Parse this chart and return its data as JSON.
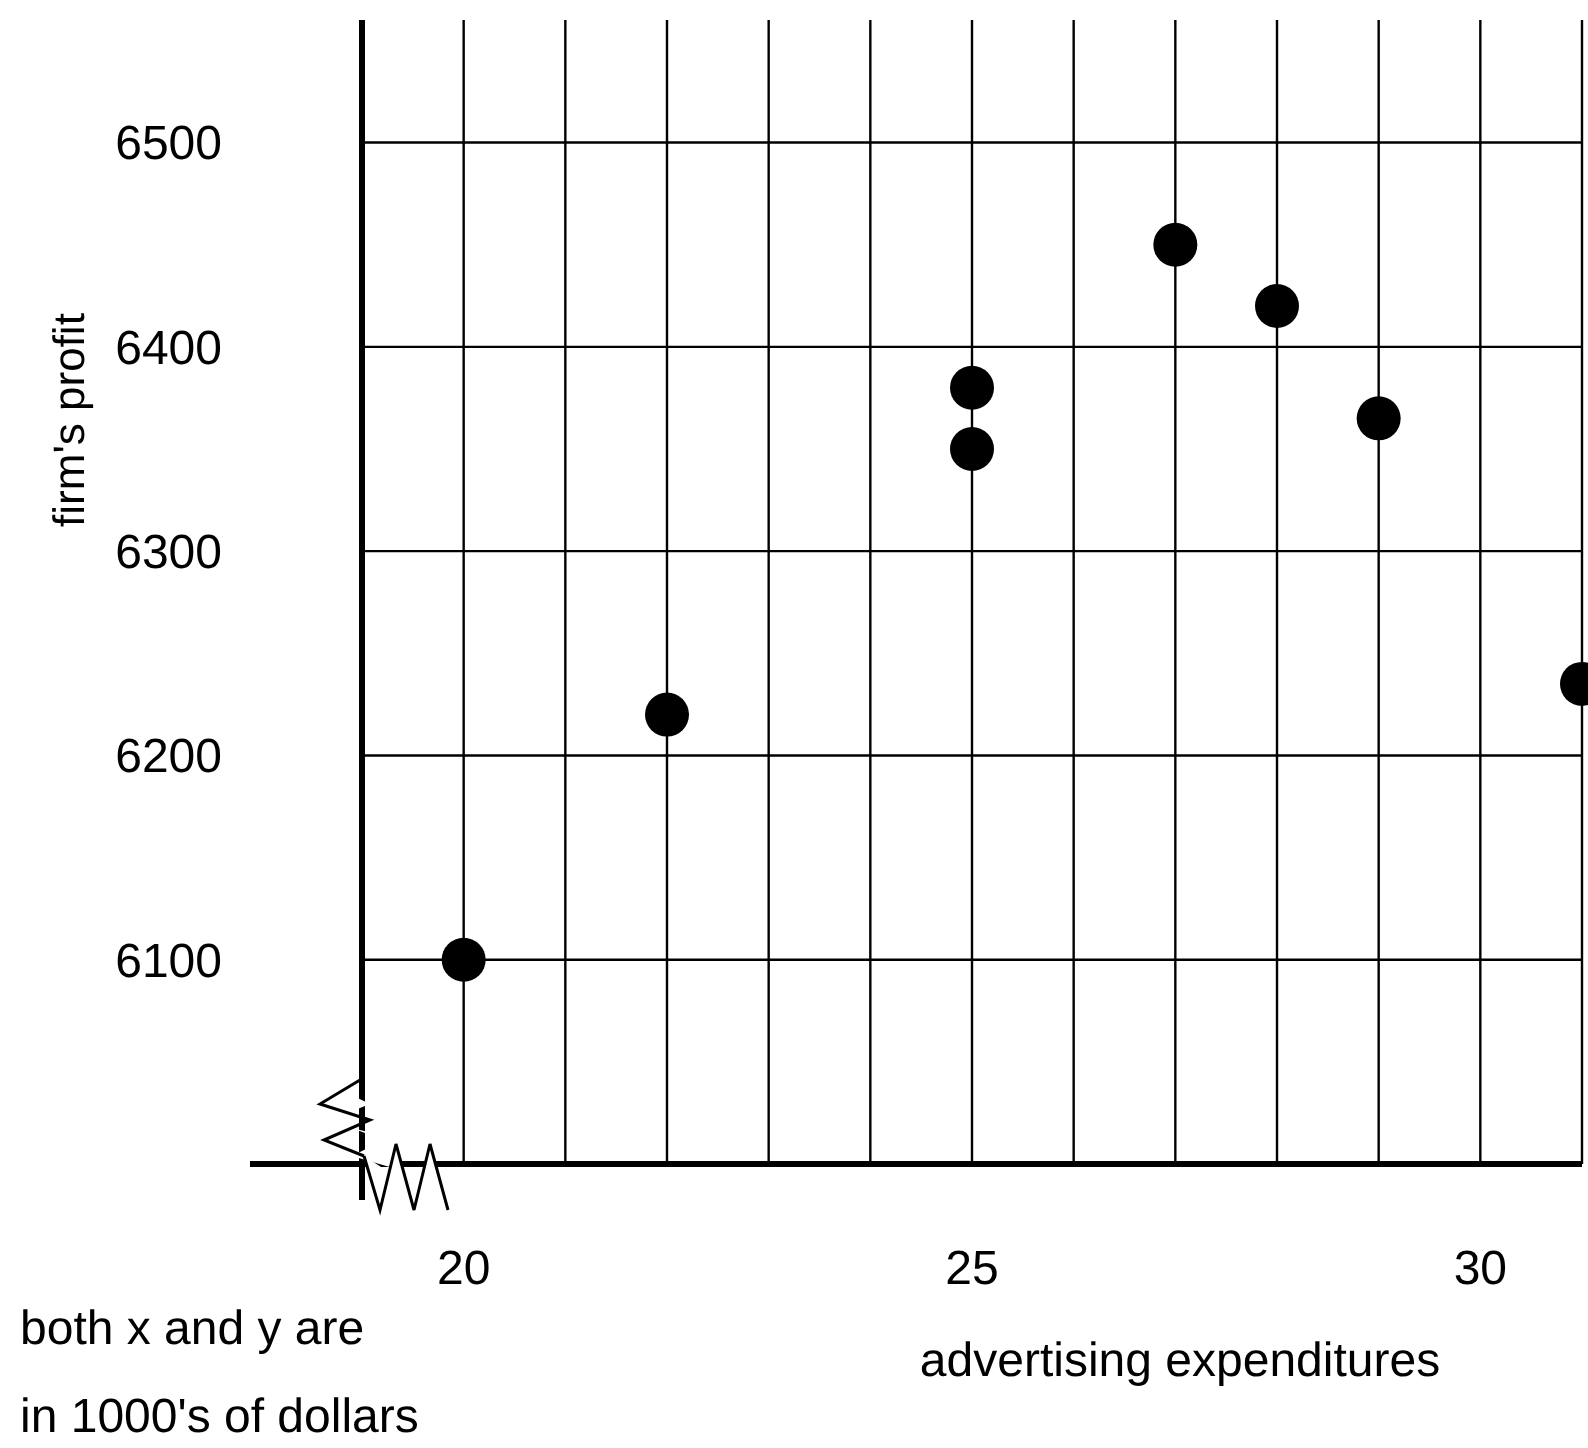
{
  "chart_data": {
    "type": "scatter",
    "xlabel": "advertising expenditures",
    "ylabel": "firm's profit",
    "annotations": [
      "both x and y are in 1000's of dollars"
    ],
    "x": [
      20,
      22,
      25,
      25,
      27,
      28,
      29,
      31
    ],
    "values": [
      6100,
      6220,
      6380,
      6350,
      6450,
      6420,
      6365,
      6235
    ],
    "color": "#000000",
    "marker": "circle",
    "xlim": [
      19,
      31
    ],
    "ylim": [
      6000,
      6560
    ],
    "xticks": [
      20,
      {
        "value": 21,
        "label": null
      },
      {
        "value": 22,
        "label": null
      },
      {
        "value": 23,
        "label": null
      },
      {
        "value": 24,
        "label": null
      },
      25,
      {
        "value": 26,
        "label": null
      },
      {
        "value": 27,
        "label": null
      },
      {
        "value": 28,
        "label": null
      },
      {
        "value": 29,
        "label": null
      },
      30,
      {
        "value": 31,
        "label": null
      }
    ],
    "yticks": [
      6100,
      6200,
      6300,
      6400,
      6500
    ],
    "grid": true
  }
}
